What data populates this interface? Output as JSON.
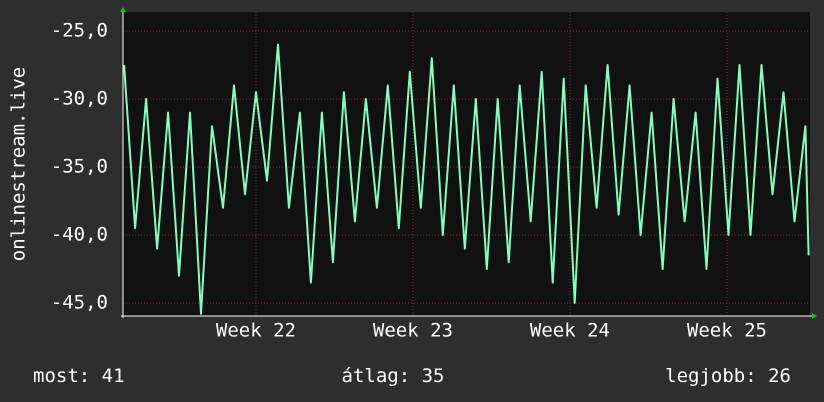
{
  "chart_data": {
    "type": "line",
    "y_label": "onlinestream.live",
    "x": [
      21.16,
      21.23,
      21.3,
      21.37,
      21.44,
      21.51,
      21.58,
      21.65,
      21.72,
      21.79,
      21.86,
      21.93,
      22.0,
      22.07,
      22.14,
      22.21,
      22.28,
      22.35,
      22.42,
      22.49,
      22.56,
      22.63,
      22.7,
      22.77,
      22.84,
      22.91,
      22.98,
      23.05,
      23.12,
      23.19,
      23.26,
      23.33,
      23.4,
      23.47,
      23.54,
      23.61,
      23.68,
      23.75,
      23.82,
      23.89,
      23.96,
      24.03,
      24.1,
      24.17,
      24.24,
      24.31,
      24.38,
      24.45,
      24.52,
      24.59,
      24.66,
      24.73,
      24.8,
      24.87,
      24.94,
      25.01,
      25.08,
      25.15,
      25.22,
      25.29,
      25.36,
      25.43,
      25.5,
      25.52
    ],
    "series": [
      {
        "color": "#80ffc0",
        "values": [
          -27.5,
          -39.5,
          -30,
          -41,
          -31,
          -43,
          -31,
          -45.8,
          -32,
          -38,
          -29,
          -37,
          -29.5,
          -36,
          -26,
          -38,
          -31,
          -43.5,
          -31,
          -42,
          -29.5,
          -39,
          -30,
          -38,
          -29,
          -39.5,
          -28,
          -38,
          -27,
          -40,
          -29,
          -41,
          -30,
          -42.5,
          -30,
          -42,
          -29,
          -39,
          -28,
          -43.5,
          -28.5,
          -45,
          -29,
          -38,
          -27.5,
          -38.5,
          -29,
          -40,
          -31,
          -42.5,
          -30,
          -39,
          -31,
          -42.5,
          -28.5,
          -40,
          -27.5,
          -40,
          -27.5,
          -37,
          -29.5,
          -39,
          -32,
          -41.5
        ]
      }
    ],
    "xlim": [
      21.153,
      25.529
    ],
    "xticks": [
      {
        "value": 22,
        "label": "Week 22"
      },
      {
        "value": 23,
        "label": "Week 23"
      },
      {
        "value": 24,
        "label": "Week 24"
      },
      {
        "value": 25,
        "label": "Week 25"
      }
    ],
    "ylim": [
      -45.96,
      -23.6
    ],
    "yticks": [
      {
        "value": -45,
        "label": "-45,0"
      },
      {
        "value": -40,
        "label": "-40,0"
      },
      {
        "value": -35,
        "label": "-35,0"
      },
      {
        "value": -30,
        "label": "-30,0"
      },
      {
        "value": -25,
        "label": "-25,0"
      }
    ],
    "grid": true,
    "footer": {
      "current": "most: 41",
      "average": "átlag: 35",
      "best": "legjobb: 26"
    }
  }
}
